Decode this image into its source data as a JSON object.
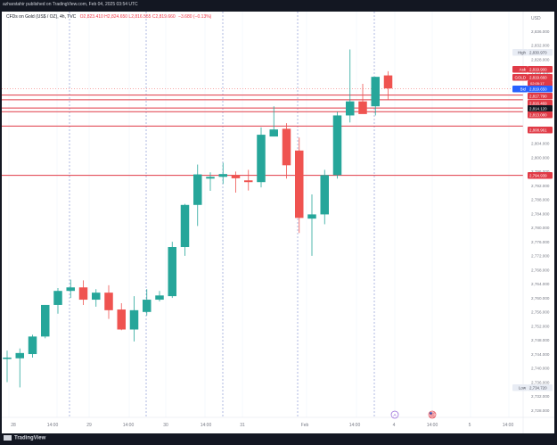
{
  "header": {
    "publisher_line": "azharstahir published on TradingView.com, Feb 04, 2025 03:54 UTC"
  },
  "legend": {
    "symbol": "CFDs on Gold (US$ / OZ), 4h, TVC",
    "ohlc": "O2,823.410 H2,824.650 L2,816.555 C2,819.660",
    "change": "−3.680 (−0.13%)"
  },
  "axis": {
    "currency": "USD"
  },
  "footer": {
    "brand": "TradingView"
  },
  "colors": {
    "up": "#26a69a",
    "down": "#ef5350",
    "level_line": "#e03a46",
    "dashed_divider": "#7b8ccf",
    "background": "#ffffff"
  },
  "chart_data": {
    "type": "candlestick",
    "timeframe": "4h",
    "ylim": [
      2726,
      2840
    ],
    "y_ticks": [
      "2,836.000",
      "2,832.000",
      "2,828.000",
      "2,824.000",
      "2,820.000",
      "2,816.000",
      "2,812.000",
      "2,808.000",
      "2,804.000",
      "2,800.000",
      "2,796.000",
      "2,792.000",
      "2,788.000",
      "2,784.000",
      "2,780.000",
      "2,776.000",
      "2,772.000",
      "2,768.000",
      "2,764.000",
      "2,760.000",
      "2,756.000",
      "2,752.000",
      "2,748.000",
      "2,744.000",
      "2,740.000",
      "2,736.000",
      "2,732.000",
      "2,728.000"
    ],
    "x_ticks": [
      "28",
      "14:00",
      "29",
      "14:00",
      "30",
      "14:00",
      "31",
      "Feb",
      "14:00",
      "4",
      "14:00",
      "5",
      "14:00"
    ],
    "candles": [
      {
        "o": 2742.6,
        "h": 2745.0,
        "l": 2736.0,
        "c": 2743.0
      },
      {
        "o": 2742.8,
        "h": 2745.6,
        "l": 2734.5,
        "c": 2744.3
      },
      {
        "o": 2744.0,
        "h": 2749.5,
        "l": 2743.0,
        "c": 2749.0
      },
      {
        "o": 2749.0,
        "h": 2758.0,
        "l": 2748.5,
        "c": 2758.0
      },
      {
        "o": 2758.0,
        "h": 2762.8,
        "l": 2755.5,
        "c": 2762.0
      },
      {
        "o": 2762.0,
        "h": 2765.2,
        "l": 2760.0,
        "c": 2763.0
      },
      {
        "o": 2763.0,
        "h": 2765.0,
        "l": 2758.0,
        "c": 2759.5
      },
      {
        "o": 2759.5,
        "h": 2762.5,
        "l": 2757.5,
        "c": 2761.5
      },
      {
        "o": 2761.5,
        "h": 2763.6,
        "l": 2754.0,
        "c": 2756.5
      },
      {
        "o": 2756.7,
        "h": 2758.5,
        "l": 2750.8,
        "c": 2751.0
      },
      {
        "o": 2751.0,
        "h": 2760.5,
        "l": 2747.6,
        "c": 2756.5
      },
      {
        "o": 2756.0,
        "h": 2762.5,
        "l": 2755.0,
        "c": 2759.5
      },
      {
        "o": 2759.5,
        "h": 2762.0,
        "l": 2759.0,
        "c": 2760.7
      },
      {
        "o": 2760.5,
        "h": 2776.0,
        "l": 2760.0,
        "c": 2774.5
      },
      {
        "o": 2774.5,
        "h": 2786.8,
        "l": 2772.0,
        "c": 2786.5
      },
      {
        "o": 2786.5,
        "h": 2798.0,
        "l": 2780.5,
        "c": 2795.2
      },
      {
        "o": 2794.0,
        "h": 2795.8,
        "l": 2790.5,
        "c": 2794.5
      },
      {
        "o": 2794.5,
        "h": 2798.5,
        "l": 2792.5,
        "c": 2795.3
      },
      {
        "o": 2795.0,
        "h": 2796.0,
        "l": 2790.0,
        "c": 2794.1
      },
      {
        "o": 2793.5,
        "h": 2796.5,
        "l": 2790.6,
        "c": 2793.0
      },
      {
        "o": 2793.0,
        "h": 2808.6,
        "l": 2791.5,
        "c": 2806.5
      },
      {
        "o": 2806.0,
        "h": 2814.6,
        "l": 2806.0,
        "c": 2808.0
      },
      {
        "o": 2808.2,
        "h": 2809.8,
        "l": 2794.0,
        "c": 2797.8
      },
      {
        "o": 2802.0,
        "h": 2805.7,
        "l": 2778.5,
        "c": 2782.8
      },
      {
        "o": 2782.6,
        "h": 2789.5,
        "l": 2772.0,
        "c": 2783.8
      },
      {
        "o": 2783.8,
        "h": 2796.5,
        "l": 2781.0,
        "c": 2795.0
      },
      {
        "o": 2795.0,
        "h": 2813.0,
        "l": 2794.0,
        "c": 2812.0
      },
      {
        "o": 2812.0,
        "h": 2830.8,
        "l": 2810.0,
        "c": 2816.0
      },
      {
        "o": 2816.0,
        "h": 2821.0,
        "l": 2812.5,
        "c": 2812.4
      },
      {
        "o": 2814.6,
        "h": 2823.0,
        "l": 2812.0,
        "c": 2823.0
      },
      {
        "o": 2823.4,
        "h": 2824.6,
        "l": 2816.6,
        "c": 2819.7
      }
    ],
    "price_labels": [
      {
        "label": "High",
        "value": "2,830.970",
        "kind": "plain"
      },
      {
        "label": "Ask",
        "value": "2,819.900",
        "kind": "red"
      },
      {
        "label": "GOLD",
        "value": "2,819.660",
        "kind": "red",
        "countdown": "02:05:17"
      },
      {
        "label": "Bid",
        "value": "2,819.650",
        "kind": "blue"
      },
      {
        "label": "",
        "value": "2,817.790",
        "kind": "red"
      },
      {
        "label": "",
        "value": "2,816.469",
        "kind": "red"
      },
      {
        "label": "",
        "value": "2,814.120",
        "kind": "dark"
      },
      {
        "label": "",
        "value": "2,813.080",
        "kind": "red"
      },
      {
        "label": "",
        "value": "2,808.961",
        "kind": "red"
      },
      {
        "label": "",
        "value": "2,794.939",
        "kind": "red"
      },
      {
        "label": "Low",
        "value": "2,734.720",
        "kind": "plain"
      }
    ],
    "horizontal_levels": [
      2817.79,
      2816.469,
      2814.12,
      2813.08,
      2808.961,
      2794.939
    ],
    "dashed_dividers": [
      "28",
      "29",
      "30",
      "31",
      "Feb",
      "4"
    ],
    "event_markers": [
      "A",
      "US-flag"
    ]
  }
}
